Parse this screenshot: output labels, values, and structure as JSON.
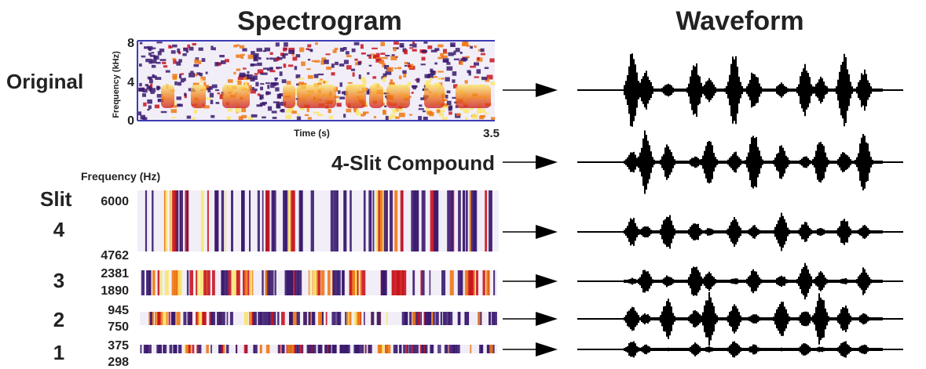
{
  "headers": {
    "spectrogram": "Spectrogram",
    "waveform": "Waveform"
  },
  "original": {
    "row_label": "Original",
    "y_axis_label": "Frequency (kHz)",
    "y_ticks": [
      "8",
      "4",
      "0"
    ],
    "x_axis_label": "Time (s)",
    "x_end": "3.5"
  },
  "compound": {
    "label": "4-Slit Compound"
  },
  "slits": {
    "freq_axis_label": "Frequency (Hz)",
    "title": "Slit",
    "items": [
      {
        "num": "4",
        "high": "6000",
        "low": "4762"
      },
      {
        "num": "3",
        "high": "2381",
        "low": "1890"
      },
      {
        "num": "2",
        "high": "945",
        "low": "750"
      },
      {
        "num": "1",
        "high": "375",
        "low": "298"
      }
    ]
  },
  "colors": {
    "spec_background": "#f2eef8",
    "spec_dark": "#3a1a6e",
    "spec_red": "#c8141e",
    "spec_orange": "#f07814",
    "spec_yellow": "#fae66e",
    "axis_blue": "#3c3cb4",
    "waveform": "#000000"
  }
}
